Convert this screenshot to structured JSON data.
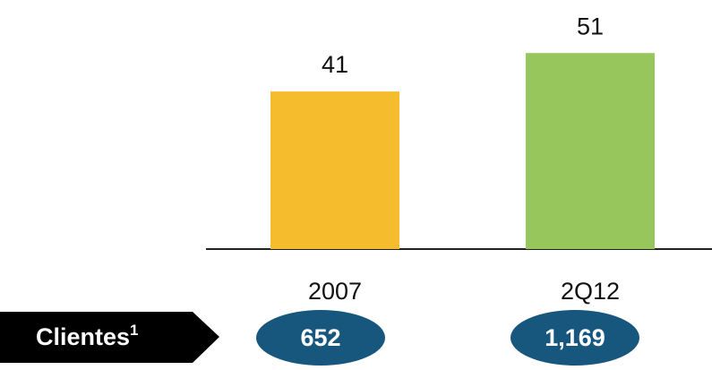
{
  "chart_data": {
    "type": "bar",
    "categories": [
      "2007",
      "2Q12"
    ],
    "values": [
      41,
      51
    ],
    "colors": [
      "#f5bd2e",
      "#97c65c"
    ],
    "clients": {
      "label": "Clientes",
      "footnote": "1",
      "values": [
        652,
        1169
      ],
      "value_labels": [
        "652",
        "1,169"
      ],
      "color": "#17577e"
    }
  }
}
